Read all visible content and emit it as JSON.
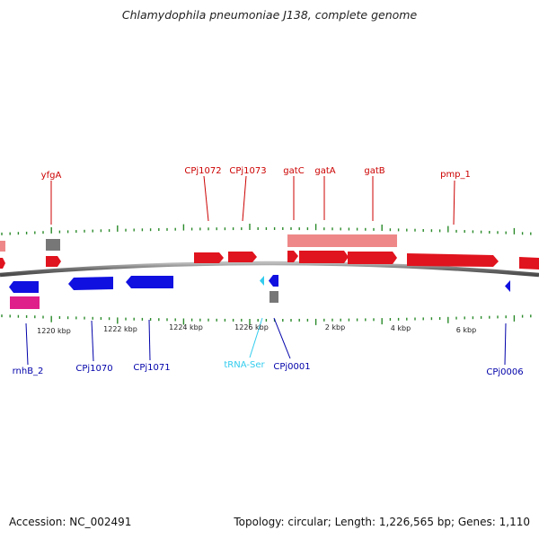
{
  "title": "Chlamydophila pneumoniae J138, complete genome",
  "footer": {
    "accession": "Accession: NC_002491",
    "summary": "Topology: circular; Length: 1,226,565 bp; Genes: 1,110"
  },
  "colors": {
    "forward_gene": "#e0141e",
    "forward_gene_light": "#ee8888",
    "reverse_gene": "#1010e0",
    "forward_label": "#cc0000",
    "reverse_label": "#0000aa",
    "trna": "#33ccee",
    "rrna": "#e0208a",
    "misc": "#777777",
    "ticks": "#2a8a2a",
    "backbone": "#777777"
  },
  "forward_labels": [
    "yfgA",
    "CPj1072",
    "CPj1073",
    "gatC",
    "gatA",
    "gatB",
    "pmp_1"
  ],
  "reverse_labels": [
    "rnhB_2",
    "CPj1070",
    "CPj1071",
    "tRNA-Ser",
    "CPj0001",
    "CPj0006"
  ],
  "position_labels": [
    "1220 kbp",
    "1222 kbp",
    "1224 kbp",
    "1226 kbp",
    "2 kbp",
    "4 kbp",
    "6 kbp"
  ]
}
